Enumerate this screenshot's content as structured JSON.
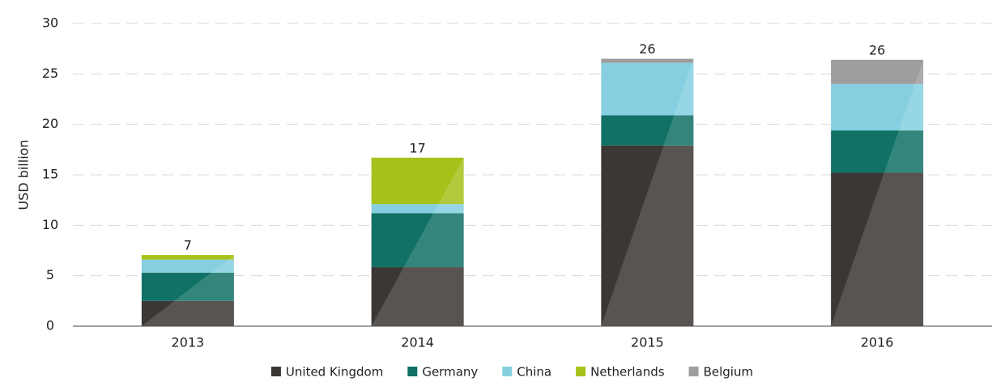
{
  "chart_data": {
    "type": "bar",
    "stacked": true,
    "y_label": "USD billion",
    "categories": [
      "2013",
      "2014",
      "2015",
      "2016"
    ],
    "series": [
      {
        "name": "United Kingdom",
        "color": "#3b3734",
        "values": [
          2.5,
          5.85,
          17.9,
          15.2
        ]
      },
      {
        "name": "Germany",
        "color": "#117166",
        "values": [
          2.8,
          5.35,
          3.0,
          4.2
        ]
      },
      {
        "name": "China",
        "color": "#85cfe0",
        "values": [
          1.3,
          0.9,
          5.2,
          4.6
        ]
      },
      {
        "name": "Netherlands",
        "color": "#a5c21b",
        "values": [
          0.45,
          4.6,
          0,
          0
        ]
      },
      {
        "name": "Belgium",
        "color": "#9d9d9d",
        "values": [
          0,
          0,
          0.4,
          2.4
        ]
      }
    ],
    "totals": [
      7,
      17,
      26,
      26
    ],
    "ylim": [
      0,
      30
    ],
    "yticks": [
      0,
      5,
      10,
      15,
      20,
      25,
      30
    ],
    "grid": true
  }
}
